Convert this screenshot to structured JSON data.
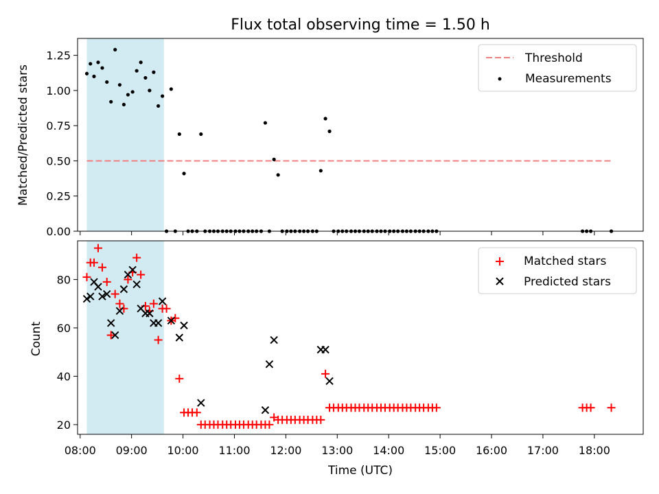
{
  "figure": {
    "title": "Flux total observing time = 1.50 h",
    "xlabel": "Time (UTC)",
    "x_tick_labels": [
      "08:00",
      "09:00",
      "10:00",
      "11:00",
      "12:00",
      "13:00",
      "14:00",
      "15:00",
      "16:00",
      "17:00",
      "18:00"
    ],
    "x_tick_hours": [
      8,
      9,
      10,
      11,
      12,
      13,
      14,
      15,
      16,
      17,
      18
    ],
    "xlim": [
      7.95,
      18.95
    ],
    "shaded_span": {
      "start": 8.13,
      "end": 9.63,
      "color": "#add8e6"
    }
  },
  "chart_data": [
    {
      "type": "scatter",
      "ylabel": "Matched/Predicted stars",
      "ylim": [
        0,
        1.37
      ],
      "y_ticks": [
        0,
        0.25,
        0.5,
        0.75,
        1.0,
        1.25
      ],
      "y_tick_labels": [
        "0.00",
        "0.25",
        "0.50",
        "0.75",
        "1.00",
        "1.25"
      ],
      "legend_position": "top-right",
      "threshold": {
        "name": "Threshold",
        "value": 0.5,
        "x_start": 8.13,
        "x_end": 18.33,
        "color": "#f08080"
      },
      "series": [
        {
          "name": "Measurements",
          "color": "#000000",
          "points": [
            [
              8.13,
              1.12
            ],
            [
              8.2,
              1.19
            ],
            [
              8.27,
              1.1
            ],
            [
              8.35,
              1.2
            ],
            [
              8.43,
              1.16
            ],
            [
              8.52,
              1.06
            ],
            [
              8.6,
              0.92
            ],
            [
              8.68,
              1.29
            ],
            [
              8.77,
              1.04
            ],
            [
              8.85,
              0.9
            ],
            [
              8.93,
              0.97
            ],
            [
              9.02,
              0.99
            ],
            [
              9.1,
              1.14
            ],
            [
              9.18,
              1.2
            ],
            [
              9.27,
              1.09
            ],
            [
              9.35,
              1.0
            ],
            [
              9.43,
              1.13
            ],
            [
              9.52,
              0.89
            ],
            [
              9.6,
              0.96
            ],
            [
              9.68,
              0
            ],
            [
              9.77,
              1.01
            ],
            [
              9.85,
              0
            ],
            [
              9.93,
              0.69
            ],
            [
              10.02,
              0.41
            ],
            [
              10.1,
              0
            ],
            [
              10.18,
              0
            ],
            [
              10.27,
              0
            ],
            [
              10.35,
              0.69
            ],
            [
              10.43,
              0
            ],
            [
              10.52,
              0
            ],
            [
              10.6,
              0
            ],
            [
              10.68,
              0
            ],
            [
              10.77,
              0
            ],
            [
              10.85,
              0
            ],
            [
              10.93,
              0
            ],
            [
              11.02,
              0
            ],
            [
              11.1,
              0
            ],
            [
              11.18,
              0
            ],
            [
              11.27,
              0
            ],
            [
              11.35,
              0
            ],
            [
              11.43,
              0
            ],
            [
              11.52,
              0
            ],
            [
              11.6,
              0.77
            ],
            [
              11.68,
              0
            ],
            [
              11.77,
              0.51
            ],
            [
              11.85,
              0.4
            ],
            [
              11.93,
              0
            ],
            [
              12.02,
              0
            ],
            [
              12.1,
              0
            ],
            [
              12.18,
              0
            ],
            [
              12.27,
              0
            ],
            [
              12.35,
              0
            ],
            [
              12.43,
              0
            ],
            [
              12.52,
              0
            ],
            [
              12.6,
              0
            ],
            [
              12.68,
              0.43
            ],
            [
              12.77,
              0.8
            ],
            [
              12.85,
              0.71
            ],
            [
              12.93,
              0
            ],
            [
              13.02,
              0
            ],
            [
              13.1,
              0
            ],
            [
              13.18,
              0
            ],
            [
              13.27,
              0
            ],
            [
              13.35,
              0
            ],
            [
              13.43,
              0
            ],
            [
              13.52,
              0
            ],
            [
              13.6,
              0
            ],
            [
              13.68,
              0
            ],
            [
              13.77,
              0
            ],
            [
              13.85,
              0
            ],
            [
              13.93,
              0
            ],
            [
              14.02,
              0
            ],
            [
              14.1,
              0
            ],
            [
              14.18,
              0
            ],
            [
              14.27,
              0
            ],
            [
              14.35,
              0
            ],
            [
              14.43,
              0
            ],
            [
              14.52,
              0
            ],
            [
              14.6,
              0
            ],
            [
              14.68,
              0
            ],
            [
              14.77,
              0
            ],
            [
              14.85,
              0
            ],
            [
              14.93,
              0
            ],
            [
              17.77,
              0
            ],
            [
              17.85,
              0
            ],
            [
              17.93,
              0
            ],
            [
              18.33,
              0
            ]
          ]
        }
      ]
    },
    {
      "type": "scatter",
      "ylabel": "Count",
      "ylim": [
        16,
        96
      ],
      "y_ticks": [
        20,
        40,
        60,
        80
      ],
      "y_tick_labels": [
        "20",
        "40",
        "60",
        "80"
      ],
      "legend_position": "top-right",
      "series": [
        {
          "name": "Matched stars",
          "marker": "plus",
          "color": "#ff0000",
          "points": [
            [
              8.13,
              81
            ],
            [
              8.2,
              87
            ],
            [
              8.27,
              87
            ],
            [
              8.35,
              93
            ],
            [
              8.43,
              85
            ],
            [
              8.52,
              79
            ],
            [
              8.6,
              57
            ],
            [
              8.68,
              74
            ],
            [
              8.77,
              70
            ],
            [
              8.85,
              68
            ],
            [
              8.93,
              80
            ],
            [
              9.02,
              83
            ],
            [
              9.1,
              89
            ],
            [
              9.18,
              82
            ],
            [
              9.27,
              69
            ],
            [
              9.35,
              67
            ],
            [
              9.43,
              70
            ],
            [
              9.52,
              55
            ],
            [
              9.6,
              68
            ],
            [
              9.68,
              68
            ],
            [
              9.77,
              63
            ],
            [
              9.85,
              64
            ],
            [
              9.93,
              39
            ],
            [
              10.02,
              25
            ],
            [
              10.1,
              25
            ],
            [
              10.18,
              25
            ],
            [
              10.27,
              25
            ],
            [
              10.35,
              20
            ],
            [
              10.43,
              20
            ],
            [
              10.52,
              20
            ],
            [
              10.6,
              20
            ],
            [
              10.68,
              20
            ],
            [
              10.77,
              20
            ],
            [
              10.85,
              20
            ],
            [
              10.93,
              20
            ],
            [
              11.02,
              20
            ],
            [
              11.1,
              20
            ],
            [
              11.18,
              20
            ],
            [
              11.27,
              20
            ],
            [
              11.35,
              20
            ],
            [
              11.43,
              20
            ],
            [
              11.52,
              20
            ],
            [
              11.6,
              20
            ],
            [
              11.68,
              20
            ],
            [
              11.77,
              23
            ],
            [
              11.85,
              22
            ],
            [
              11.93,
              22
            ],
            [
              12.02,
              22
            ],
            [
              12.1,
              22
            ],
            [
              12.18,
              22
            ],
            [
              12.27,
              22
            ],
            [
              12.35,
              22
            ],
            [
              12.43,
              22
            ],
            [
              12.52,
              22
            ],
            [
              12.6,
              22
            ],
            [
              12.68,
              22
            ],
            [
              12.77,
              41
            ],
            [
              12.85,
              27
            ],
            [
              12.93,
              27
            ],
            [
              13.02,
              27
            ],
            [
              13.1,
              27
            ],
            [
              13.18,
              27
            ],
            [
              13.27,
              27
            ],
            [
              13.35,
              27
            ],
            [
              13.43,
              27
            ],
            [
              13.52,
              27
            ],
            [
              13.6,
              27
            ],
            [
              13.68,
              27
            ],
            [
              13.77,
              27
            ],
            [
              13.85,
              27
            ],
            [
              13.93,
              27
            ],
            [
              14.02,
              27
            ],
            [
              14.1,
              27
            ],
            [
              14.18,
              27
            ],
            [
              14.27,
              27
            ],
            [
              14.35,
              27
            ],
            [
              14.43,
              27
            ],
            [
              14.52,
              27
            ],
            [
              14.6,
              27
            ],
            [
              14.68,
              27
            ],
            [
              14.77,
              27
            ],
            [
              14.85,
              27
            ],
            [
              14.93,
              27
            ],
            [
              17.77,
              27
            ],
            [
              17.85,
              27
            ],
            [
              17.93,
              27
            ],
            [
              18.33,
              27
            ]
          ]
        },
        {
          "name": "Predicted stars",
          "marker": "x",
          "color": "#000000",
          "points": [
            [
              8.13,
              72
            ],
            [
              8.2,
              73
            ],
            [
              8.27,
              79
            ],
            [
              8.35,
              77
            ],
            [
              8.43,
              73
            ],
            [
              8.52,
              74
            ],
            [
              8.6,
              62
            ],
            [
              8.68,
              57
            ],
            [
              8.77,
              67
            ],
            [
              8.85,
              76
            ],
            [
              8.93,
              82
            ],
            [
              9.02,
              84
            ],
            [
              9.1,
              78
            ],
            [
              9.18,
              68
            ],
            [
              9.27,
              66
            ],
            [
              9.35,
              66
            ],
            [
              9.43,
              62
            ],
            [
              9.52,
              62
            ],
            [
              9.6,
              71
            ],
            [
              9.77,
              63
            ],
            [
              9.93,
              56
            ],
            [
              10.02,
              61
            ],
            [
              10.35,
              29
            ],
            [
              11.6,
              26
            ],
            [
              11.68,
              45
            ],
            [
              11.77,
              55
            ],
            [
              12.68,
              51
            ],
            [
              12.77,
              51
            ],
            [
              12.85,
              38
            ]
          ]
        }
      ]
    }
  ]
}
